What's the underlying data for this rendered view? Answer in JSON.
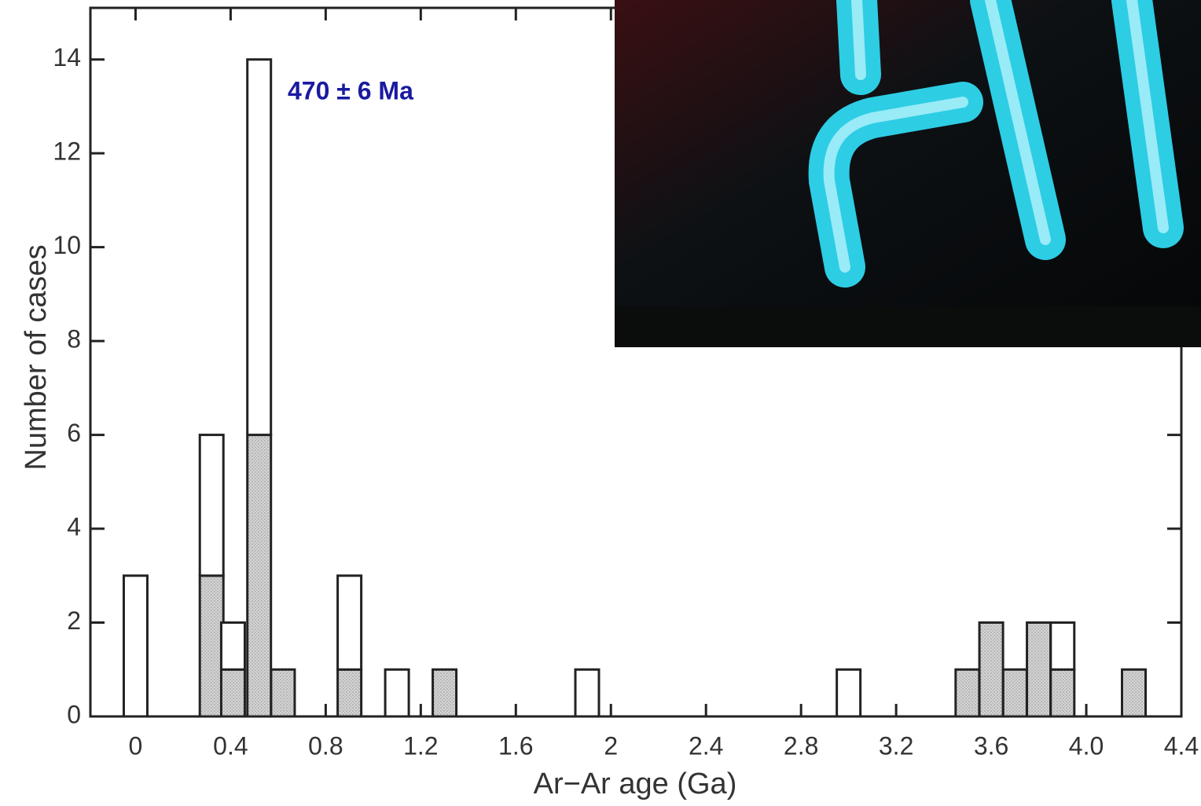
{
  "chart_data": {
    "type": "bar",
    "y_label": "Number of cases",
    "x_label": "Ar−Ar age (Ga)",
    "annotation": "470 ± 6 Ma",
    "x": [
      0.0,
      0.32,
      0.41,
      0.52,
      0.62,
      0.9,
      1.1,
      1.3,
      1.9,
      3.0,
      3.5,
      3.6,
      3.7,
      3.8,
      3.9,
      4.2
    ],
    "series": [
      {
        "color": "#d4d4d4",
        "values": [
          0,
          3,
          1,
          6,
          1,
          1,
          0,
          1,
          0,
          0,
          1,
          2,
          1,
          2,
          1,
          1
        ]
      },
      {
        "color": "#ffffff",
        "values": [
          3,
          3,
          1,
          8,
          0,
          2,
          1,
          0,
          1,
          1,
          0,
          0,
          0,
          0,
          1,
          0
        ]
      }
    ],
    "stacked": true,
    "xlim": [
      -0.19,
      4.4
    ],
    "xticks": [
      0,
      0.4,
      0.8,
      1.2,
      1.6,
      2,
      2.4,
      2.8,
      3.2,
      3.6,
      {
        "value": 4.0,
        "label": "4.0"
      },
      4.4
    ],
    "ylim": [
      0,
      15.1
    ],
    "yticks": [
      0,
      2,
      4,
      6,
      8,
      10,
      12,
      14
    ]
  }
}
